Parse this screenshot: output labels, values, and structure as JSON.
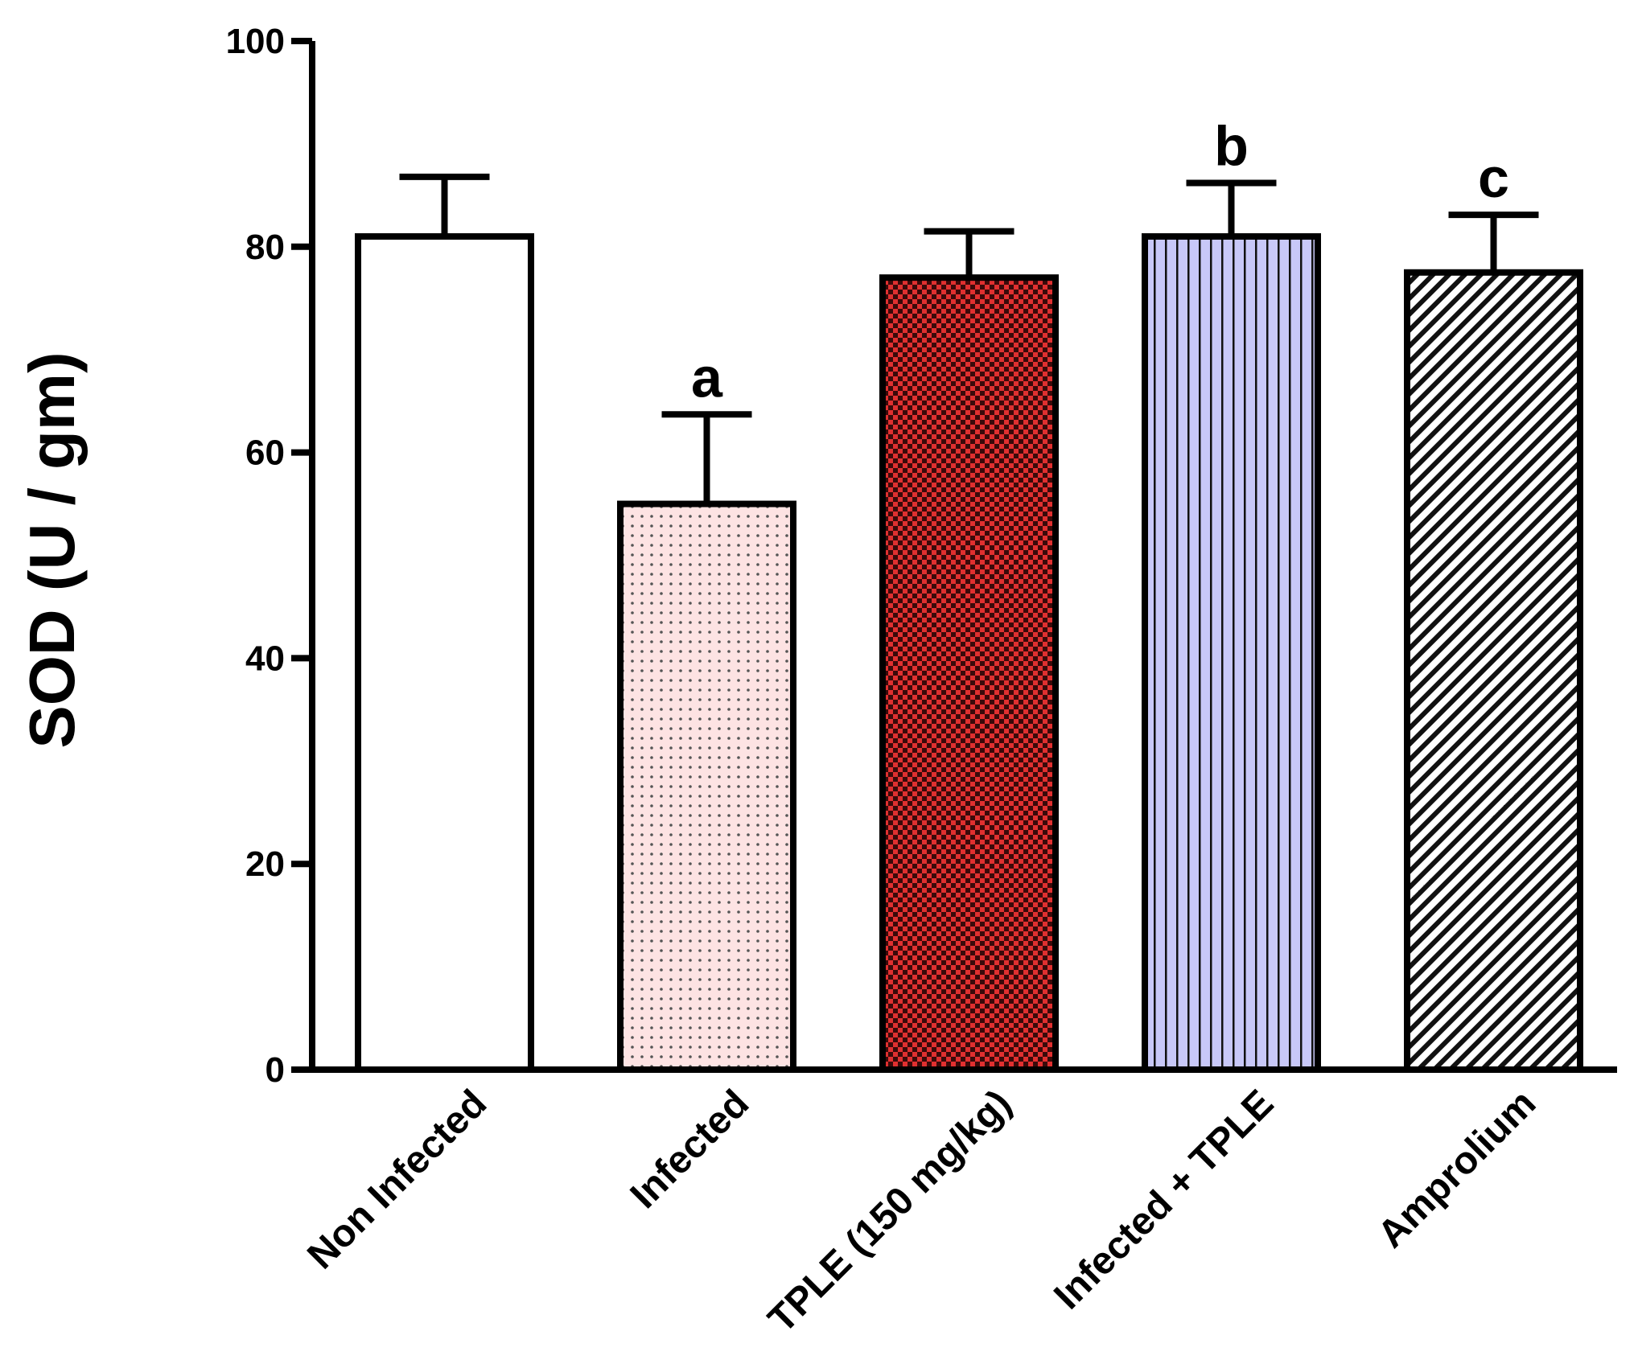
{
  "chart_data": {
    "type": "bar",
    "title": "",
    "xlabel": "",
    "ylabel": "SOD (U / gm)",
    "ylim": [
      0,
      100
    ],
    "yticks": [
      0,
      20,
      40,
      60,
      80,
      100
    ],
    "grid": false,
    "categories": [
      "Non Infected",
      "Infected",
      "TPLE (150 mg/kg)",
      "Infected + TPLE",
      "Amprolium"
    ],
    "values": [
      81,
      55,
      77,
      81,
      77.5
    ],
    "errors": [
      5.8,
      8.7,
      4.5,
      5.2,
      5.6
    ],
    "annotations": [
      "",
      "a",
      "",
      "b",
      "c"
    ],
    "fills": [
      {
        "pattern": "solid",
        "color": "#ffffff"
      },
      {
        "pattern": "dots",
        "color": "#fde3e3"
      },
      {
        "pattern": "checker",
        "color": "#e03030"
      },
      {
        "pattern": "vertical-lines",
        "color": "#c8c8f8"
      },
      {
        "pattern": "diagonal-lines",
        "color": "#ffffff"
      }
    ]
  }
}
